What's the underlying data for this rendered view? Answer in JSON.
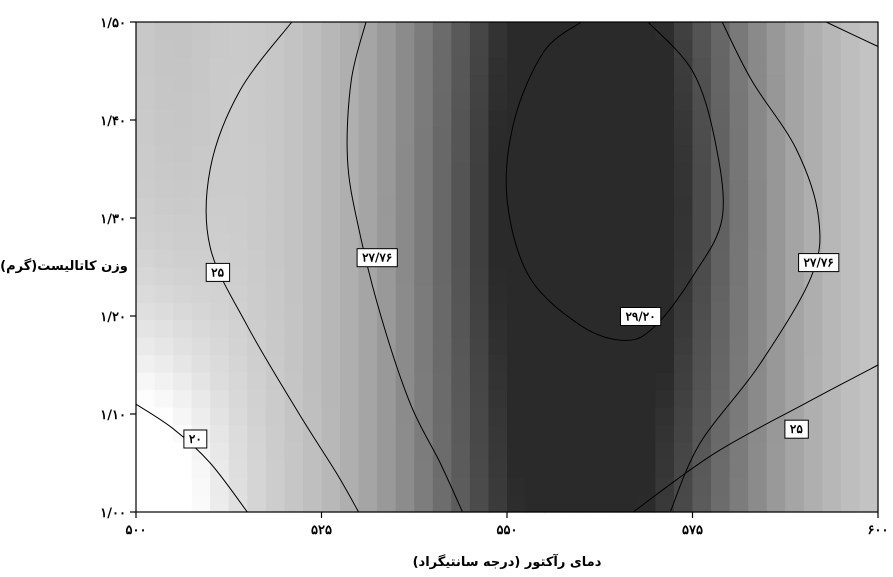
{
  "chart_data": {
    "type": "heatmap",
    "subtype": "contour",
    "xlabel": "دمای رآکتور (درجه سانتیگراد)",
    "ylabel": "وزن کاتالیست(گرم)",
    "xlim": [
      500,
      600
    ],
    "ylim": [
      1.0,
      1.5
    ],
    "x_ticks": [
      {
        "value": 500,
        "label": "۵۰۰"
      },
      {
        "value": 525,
        "label": "۵۲۵"
      },
      {
        "value": 550,
        "label": "۵۵۰"
      },
      {
        "value": 575,
        "label": "۵۷۵"
      },
      {
        "value": 600,
        "label": "۶۰۰"
      }
    ],
    "y_ticks": [
      {
        "value": 1.0,
        "label": "۱/۰۰"
      },
      {
        "value": 1.1,
        "label": "۱/۱۰"
      },
      {
        "value": 1.2,
        "label": "۱/۲۰"
      },
      {
        "value": 1.3,
        "label": "۱/۳۰"
      },
      {
        "value": 1.4,
        "label": "۱/۴۰"
      },
      {
        "value": 1.5,
        "label": "۱/۵۰"
      }
    ],
    "colormap": {
      "low": "#ffffff",
      "high": "#2a2a2a"
    },
    "contours": [
      {
        "level": 20,
        "label": "۲۰",
        "points": [
          [
            500,
            1.11
          ],
          [
            505,
            1.085
          ],
          [
            510,
            1.05
          ],
          [
            515,
            1.0
          ]
        ],
        "label_at": [
          508,
          1.075
        ]
      },
      {
        "level": 25,
        "label": "۲۵",
        "points": [
          [
            521,
            1.5
          ],
          [
            514,
            1.43
          ],
          [
            510,
            1.35
          ],
          [
            510,
            1.27
          ],
          [
            515,
            1.19
          ],
          [
            522,
            1.1
          ],
          [
            527,
            1.04
          ],
          [
            530,
            1.0
          ]
        ],
        "label_at": [
          511,
          1.245
        ]
      },
      {
        "level": 25,
        "label": "۲۵",
        "points": [
          [
            567,
            1.0
          ],
          [
            578,
            1.06
          ],
          [
            590,
            1.11
          ],
          [
            600,
            1.15
          ]
        ],
        "label_at": [
          589,
          1.085
        ]
      },
      {
        "level": 25,
        "label": "",
        "points": [
          [
            593,
            1.5
          ],
          [
            600,
            1.475
          ]
        ],
        "label_at": null
      },
      {
        "level": 27.76,
        "label": "۲۷/۷۶",
        "points": [
          [
            531,
            1.5
          ],
          [
            529,
            1.44
          ],
          [
            528.5,
            1.36
          ],
          [
            530,
            1.29
          ],
          [
            533,
            1.2
          ],
          [
            537,
            1.11
          ],
          [
            541,
            1.05
          ],
          [
            544,
            1.0
          ]
        ],
        "label_at": [
          532.5,
          1.26
        ]
      },
      {
        "level": 27.76,
        "label": "۲۷/۷۶",
        "points": [
          [
            579,
            1.5
          ],
          [
            583,
            1.44
          ],
          [
            589,
            1.37
          ],
          [
            592,
            1.3
          ],
          [
            591,
            1.24
          ],
          [
            584,
            1.15
          ],
          [
            576,
            1.07
          ],
          [
            572,
            1.0
          ]
        ],
        "label_at": [
          592,
          1.255
        ]
      },
      {
        "level": 29.2,
        "label": "۲۹/۲۰",
        "points": [
          [
            560,
            1.5
          ],
          [
            555,
            1.47
          ],
          [
            551,
            1.4
          ],
          [
            550,
            1.32
          ],
          [
            553,
            1.24
          ],
          [
            560,
            1.19
          ],
          [
            566,
            1.175
          ],
          [
            570,
            1.19
          ],
          [
            575,
            1.24
          ],
          [
            579,
            1.3
          ],
          [
            578,
            1.38
          ],
          [
            575,
            1.45
          ],
          [
            569,
            1.5
          ]
        ],
        "label_at": [
          568,
          1.2
        ]
      }
    ]
  }
}
